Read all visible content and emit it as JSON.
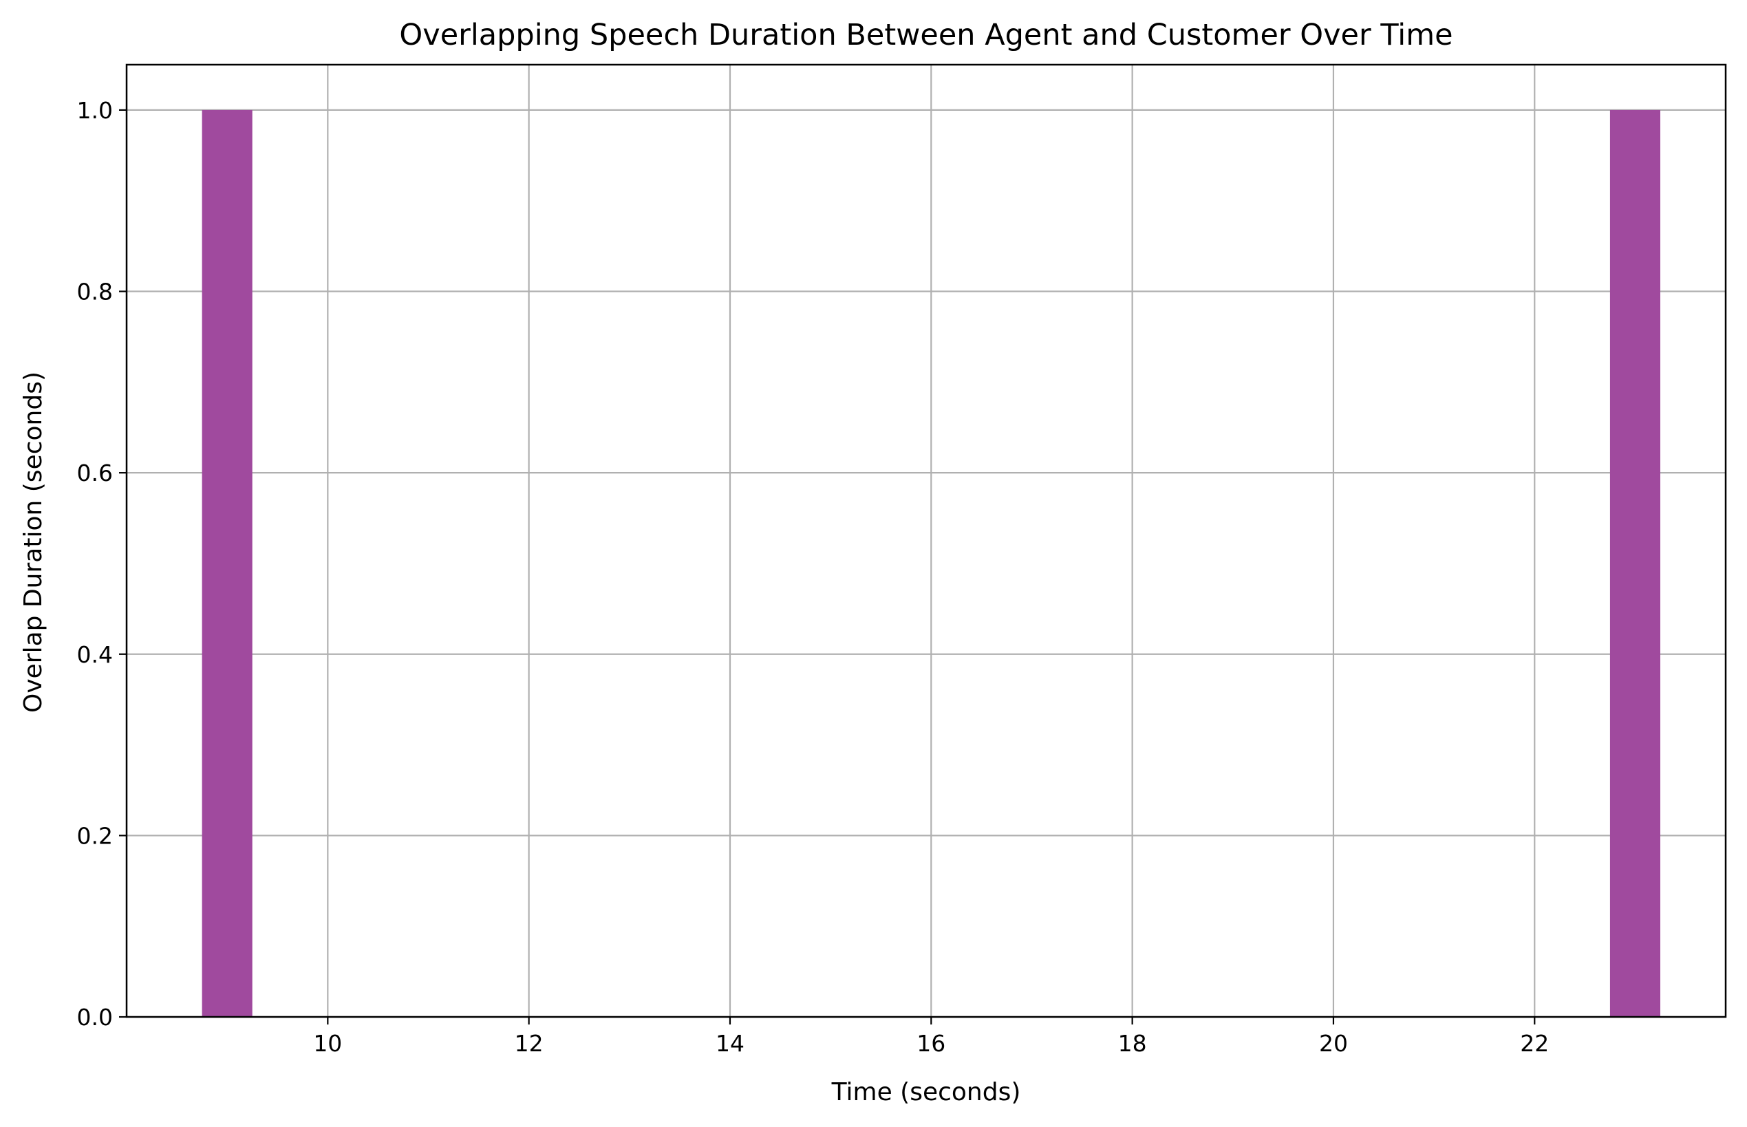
{
  "chart_data": {
    "type": "bar",
    "title": "Overlapping Speech Duration Between Agent and Customer Over Time",
    "xlabel": "Time (seconds)",
    "ylabel": "Overlap Duration (seconds)",
    "x": [
      9,
      23
    ],
    "values": [
      1.0,
      1.0
    ],
    "bar_width": 0.5,
    "xlim": [
      8.0,
      23.9
    ],
    "ylim": [
      0,
      1.05
    ],
    "xticks": [
      10,
      12,
      14,
      16,
      18,
      20,
      22
    ],
    "xtick_labels": [
      "10",
      "12",
      "14",
      "16",
      "18",
      "20",
      "22"
    ],
    "yticks": [
      0.0,
      0.2,
      0.4,
      0.6,
      0.8,
      1.0
    ],
    "ytick_labels": [
      "0.0",
      "0.2",
      "0.4",
      "0.6",
      "0.8",
      "1.0"
    ],
    "grid": true,
    "legend": "none",
    "bar_color": "#a04a9e",
    "grid_color": "#b0b0b0"
  }
}
